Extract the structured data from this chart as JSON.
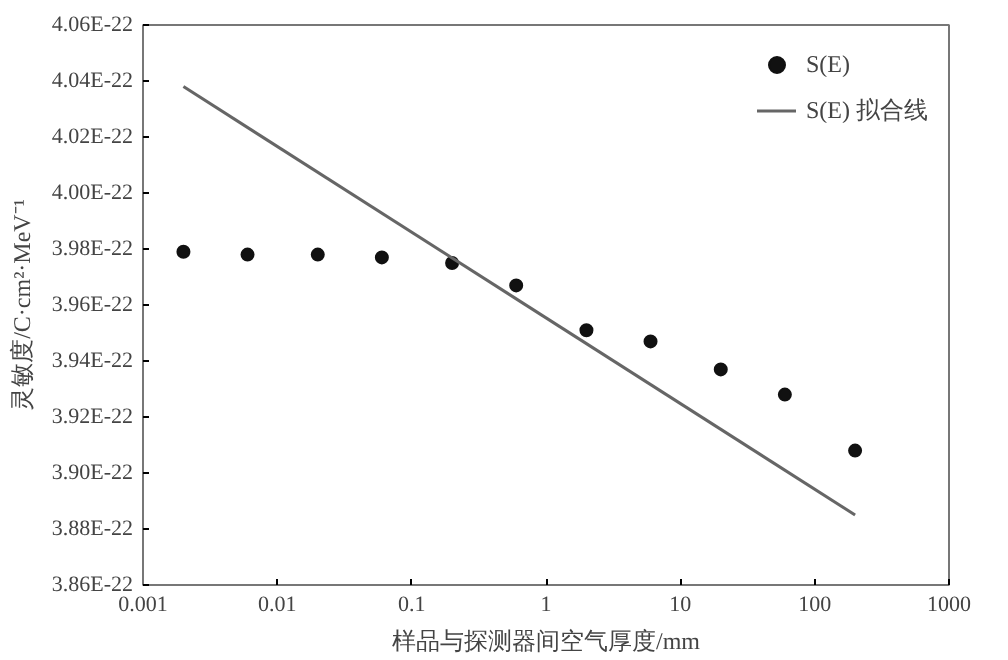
{
  "chart_data": {
    "type": "scatter",
    "xlabel": "样品与探测器间空气厚度/mm",
    "ylabel": "灵敏度/C·cm²·MeV⁻¹",
    "log": "x",
    "xlim": [
      0.001,
      1000
    ],
    "xticks": [
      0.001,
      0.01,
      0.1,
      1,
      10,
      100,
      1000
    ],
    "ylim": [
      3.86e-22,
      4.06e-22
    ],
    "yticks": [
      {
        "value": 3.86e-22,
        "label": "3.86E-22"
      },
      {
        "value": 3.88e-22,
        "label": "3.88E-22"
      },
      {
        "value": 3.9e-22,
        "label": "3.90E-22"
      },
      {
        "value": 3.92e-22,
        "label": "3.92E-22"
      },
      {
        "value": 3.94e-22,
        "label": "3.94E-22"
      },
      {
        "value": 3.96e-22,
        "label": "3.96E-22"
      },
      {
        "value": 3.98e-22,
        "label": "3.98E-22"
      },
      {
        "value": 4e-22,
        "label": "4.00E-22"
      },
      {
        "value": 4.02e-22,
        "label": "4.02E-22"
      },
      {
        "value": 4.04e-22,
        "label": "4.04E-22"
      },
      {
        "value": 4.06e-22,
        "label": "4.06E-22"
      }
    ],
    "grid": false,
    "legend": "top right",
    "series": [
      {
        "name": "S(E)",
        "marker": "circle",
        "color": "#111111",
        "x": [
          0.002,
          0.006,
          0.02,
          0.06,
          0.2,
          0.6,
          2,
          6,
          20,
          60,
          200
        ],
        "values": [
          3.979e-22,
          3.978e-22,
          3.978e-22,
          3.977e-22,
          3.975e-22,
          3.967e-22,
          3.951e-22,
          3.947e-22,
          3.937e-22,
          3.928e-22,
          3.908e-22
        ]
      },
      {
        "name": "S(E) 拟合线",
        "type": "line",
        "line_style": "solid",
        "color": "#666666",
        "x": [
          0.002,
          200
        ],
        "values": [
          4.038e-22,
          3.885e-22
        ]
      }
    ]
  }
}
